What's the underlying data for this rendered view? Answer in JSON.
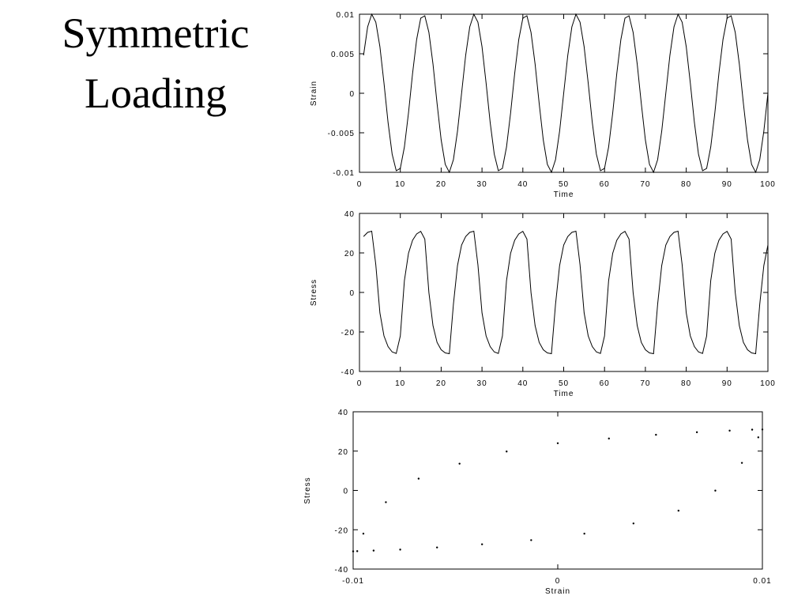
{
  "title": "Symmetric Loading",
  "chart_data": [
    {
      "type": "line",
      "xlabel": "Time",
      "ylabel": "Strain",
      "color": "#000000",
      "x": [
        1,
        2,
        3,
        4,
        5,
        6,
        7,
        8,
        9,
        10,
        11,
        12,
        13,
        14,
        15,
        16,
        17,
        18,
        19,
        20,
        21,
        22,
        23,
        24,
        25,
        26,
        27,
        28,
        29,
        30,
        31,
        32,
        33,
        34,
        35,
        36,
        37,
        38,
        39,
        40,
        41,
        42,
        43,
        44,
        45,
        46,
        47,
        48,
        49,
        50,
        51,
        52,
        53,
        54,
        55,
        56,
        57,
        58,
        59,
        60,
        61,
        62,
        63,
        64,
        65,
        66,
        67,
        68,
        69,
        70,
        71,
        72,
        73,
        74,
        75,
        76,
        77,
        78,
        79,
        80,
        81,
        82,
        83,
        84,
        85,
        86,
        87,
        88,
        89,
        90,
        91,
        92,
        93,
        94,
        95,
        96,
        97,
        98,
        99,
        100
      ],
      "values": [
        0.0048,
        0.0084,
        0.01,
        0.009,
        0.0059,
        0.0013,
        -0.0037,
        -0.0077,
        -0.0098,
        -0.0095,
        -0.0068,
        -0.0025,
        0.0025,
        0.0068,
        0.0095,
        0.0098,
        0.0077,
        0.0037,
        -0.0013,
        -0.0059,
        -0.009,
        -0.01,
        -0.0084,
        -0.0048,
        0,
        0.0048,
        0.0084,
        0.01,
        0.009,
        0.0059,
        0.0013,
        -0.0037,
        -0.0077,
        -0.0098,
        -0.0095,
        -0.0068,
        -0.0025,
        0.0025,
        0.0068,
        0.0095,
        0.0098,
        0.0077,
        0.0037,
        -0.0013,
        -0.0059,
        -0.009,
        -0.01,
        -0.0084,
        -0.0048,
        0,
        0.0048,
        0.0084,
        0.01,
        0.009,
        0.0059,
        0.0013,
        -0.0037,
        -0.0077,
        -0.0098,
        -0.0095,
        -0.0068,
        -0.0025,
        0.0025,
        0.0068,
        0.0095,
        0.0098,
        0.0077,
        0.0037,
        -0.0013,
        -0.0059,
        -0.009,
        -0.01,
        -0.0084,
        -0.0048,
        0,
        0.0048,
        0.0084,
        0.01,
        0.009,
        0.0059,
        0.0013,
        -0.0037,
        -0.0077,
        -0.0098,
        -0.0095,
        -0.0068,
        -0.0025,
        0.0025,
        0.0068,
        0.0095,
        0.0098,
        0.0077,
        0.0037,
        -0.0013,
        -0.0059,
        -0.009,
        -0.01,
        -0.0084,
        -0.0048,
        0
      ],
      "xlim": [
        0,
        100
      ],
      "xticks": [
        0,
        10,
        20,
        30,
        40,
        50,
        60,
        70,
        80,
        90,
        100
      ],
      "ylim": [
        -0.01,
        0.01
      ],
      "yticks": [
        -0.01,
        -0.005,
        0,
        0.005,
        0.01
      ]
    },
    {
      "type": "line",
      "xlabel": "Time",
      "ylabel": "Stress",
      "color": "#000000",
      "x": [
        1,
        2,
        3,
        4,
        5,
        6,
        7,
        8,
        9,
        10,
        11,
        12,
        13,
        14,
        15,
        16,
        17,
        18,
        19,
        20,
        21,
        22,
        23,
        24,
        25,
        26,
        27,
        28,
        29,
        30,
        31,
        32,
        33,
        34,
        35,
        36,
        37,
        38,
        39,
        40,
        41,
        42,
        43,
        44,
        45,
        46,
        47,
        48,
        49,
        50,
        51,
        52,
        53,
        54,
        55,
        56,
        57,
        58,
        59,
        60,
        61,
        62,
        63,
        64,
        65,
        66,
        67,
        68,
        69,
        70,
        71,
        72,
        73,
        74,
        75,
        76,
        77,
        78,
        79,
        80,
        81,
        82,
        83,
        84,
        85,
        86,
        87,
        88,
        89,
        90,
        91,
        92,
        93,
        94,
        95,
        96,
        97,
        98,
        99,
        100
      ],
      "values": [
        28.3,
        30.4,
        31,
        14,
        -10.3,
        -22,
        -27.4,
        -30.1,
        -30.9,
        -22,
        6,
        19.8,
        26.4,
        29.6,
        30.9,
        27,
        -0.1,
        -16.8,
        -25.3,
        -29,
        -30.6,
        -31,
        -6,
        13.6,
        24,
        28.3,
        30.4,
        31,
        14,
        -10.3,
        -22,
        -27.4,
        -30.1,
        -30.9,
        -22,
        6,
        19.8,
        26.4,
        29.6,
        30.9,
        27,
        -0.1,
        -16.8,
        -25.3,
        -29,
        -30.6,
        -31,
        -6,
        13.6,
        24,
        28.3,
        30.4,
        31,
        14,
        -10.3,
        -22,
        -27.4,
        -30.1,
        -30.9,
        -22,
        6,
        19.8,
        26.4,
        29.6,
        30.9,
        27,
        -0.1,
        -16.8,
        -25.3,
        -29,
        -30.6,
        -31,
        -6,
        13.6,
        24,
        28.3,
        30.4,
        31,
        14,
        -10.3,
        -22,
        -27.4,
        -30.1,
        -30.9,
        -22,
        6,
        19.8,
        26.4,
        29.6,
        30.9,
        27,
        -0.1,
        -16.8,
        -25.3,
        -29,
        -30.6,
        -31,
        -6,
        13.6,
        24
      ],
      "xlim": [
        0,
        100
      ],
      "xticks": [
        0,
        10,
        20,
        30,
        40,
        50,
        60,
        70,
        80,
        90,
        100
      ],
      "ylim": [
        -40,
        40
      ],
      "yticks": [
        -40,
        -20,
        0,
        20,
        40
      ]
    },
    {
      "type": "scatter",
      "xlabel": "Strain",
      "ylabel": "Stress",
      "color": "#000000",
      "x": [
        0.0048,
        0.0084,
        0.01,
        0.009,
        0.0059,
        0.0013,
        -0.0037,
        -0.0077,
        -0.0098,
        -0.0095,
        -0.0068,
        -0.0025,
        0.0025,
        0.0068,
        0.0095,
        0.0098,
        0.0077,
        0.0037,
        -0.0013,
        -0.0059,
        -0.009,
        -0.01,
        -0.0084,
        -0.0048,
        0
      ],
      "values": [
        28.3,
        30.4,
        31,
        14,
        -10.3,
        -22,
        -27.4,
        -30.1,
        -30.9,
        -22,
        6,
        19.8,
        26.4,
        29.6,
        30.9,
        27,
        -0.1,
        -16.8,
        -25.3,
        -29,
        -30.6,
        -31,
        -6,
        13.6,
        24
      ],
      "xlim": [
        -0.01,
        0.01
      ],
      "xticks": [
        -0.01,
        0,
        0.01
      ],
      "ylim": [
        -40,
        40
      ],
      "yticks": [
        -40,
        -20,
        0,
        20,
        40
      ]
    }
  ]
}
